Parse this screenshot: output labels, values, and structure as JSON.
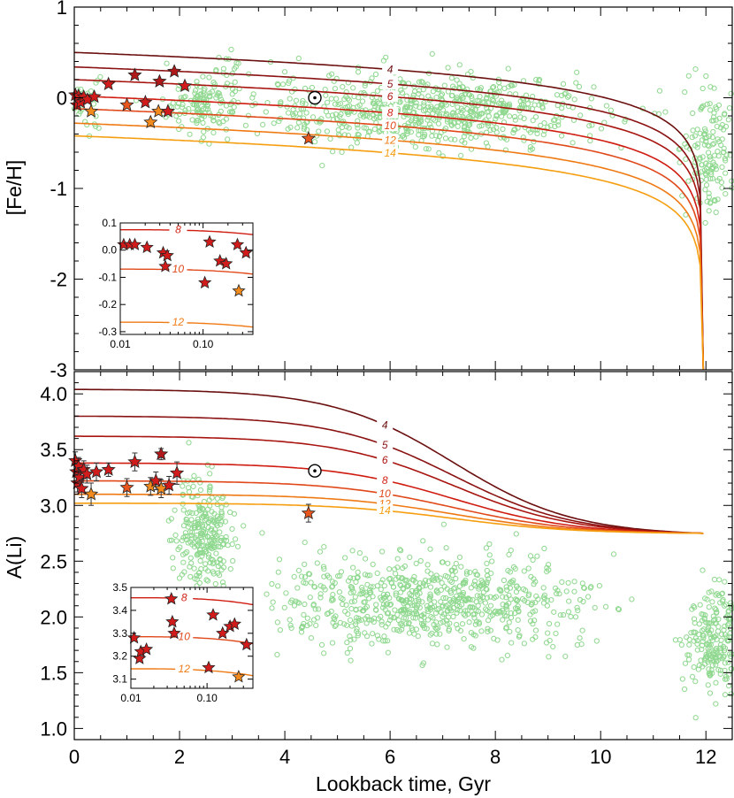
{
  "chart_data": [
    {
      "type": "line",
      "panel": "top",
      "ylabel": "[Fe/H]",
      "xlabel": "",
      "xlim": [
        0,
        12.5
      ],
      "ylim": [
        -3.0,
        1.0
      ],
      "x_ticks": [
        0,
        2,
        4,
        6,
        8,
        10,
        12
      ],
      "y_ticks": [
        1,
        0,
        -1,
        -2,
        -3
      ],
      "y_tick_labels": [
        "1",
        "0",
        "-1",
        "-2",
        "-3"
      ],
      "model_curves": [
        {
          "label": "4",
          "color": "#6b0f0f",
          "y0": 0.5
        },
        {
          "label": "5",
          "color": "#8a1212",
          "y0": 0.34
        },
        {
          "label": "6",
          "color": "#a8140f",
          "y0": 0.2
        },
        {
          "label": "8",
          "color": "#d01c10",
          "y0": 0.02
        },
        {
          "label": "10",
          "color": "#e0481a",
          "y0": -0.12
        },
        {
          "label": "12",
          "color": "#ef7a14",
          "y0": -0.28
        },
        {
          "label": "14",
          "color": "#f59e10",
          "y0": -0.42
        }
      ],
      "curve_end_x": 11.95,
      "curve_label_x": 6.0,
      "sun": {
        "x": 4.57,
        "y": 0.0
      },
      "stars": [
        {
          "x": 0.02,
          "y": 0.03,
          "color": "#d21c1c"
        },
        {
          "x": 0.05,
          "y": -0.08,
          "color": "#d21c1c"
        },
        {
          "x": 0.08,
          "y": 0.02,
          "color": "#d21c1c"
        },
        {
          "x": 0.12,
          "y": -0.05,
          "color": "#d21c1c"
        },
        {
          "x": 0.18,
          "y": 0.01,
          "color": "#d21c1c"
        },
        {
          "x": 0.25,
          "y": -0.02,
          "color": "#d21c1c"
        },
        {
          "x": 0.32,
          "y": -0.15,
          "color": "#f28a1e"
        },
        {
          "x": 0.38,
          "y": 0.01,
          "color": "#d21c1c"
        },
        {
          "x": 0.65,
          "y": 0.15,
          "color": "#d21c1c"
        },
        {
          "x": 1.0,
          "y": -0.08,
          "color": "#e8561d"
        },
        {
          "x": 1.15,
          "y": 0.25,
          "color": "#b0181a"
        },
        {
          "x": 1.35,
          "y": -0.05,
          "color": "#d21c1c"
        },
        {
          "x": 1.45,
          "y": -0.27,
          "color": "#f28a1e"
        },
        {
          "x": 1.6,
          "y": -0.15,
          "color": "#f28a1e"
        },
        {
          "x": 1.62,
          "y": 0.18,
          "color": "#b0181a"
        },
        {
          "x": 1.78,
          "y": -0.15,
          "color": "#d21c1c"
        },
        {
          "x": 1.9,
          "y": 0.29,
          "color": "#b0181a"
        },
        {
          "x": 2.1,
          "y": 0.13,
          "color": "#d21c1c"
        },
        {
          "x": 4.45,
          "y": -0.45,
          "color": "#e8561d"
        }
      ],
      "inset": {
        "xscale": "log",
        "xlim": [
          0.01,
          0.4
        ],
        "ylim": [
          -0.31,
          0.1
        ],
        "x_ticks": [
          0.01,
          0.1
        ],
        "x_tick_labels": [
          "0.01",
          "0.10"
        ],
        "y_ticks": [
          0.1,
          0.0,
          -0.1,
          -0.2,
          -0.3
        ],
        "y_tick_labels": [
          "0.1",
          "0.0",
          "-0.1",
          "-0.2",
          "-0.3"
        ],
        "lines": [
          {
            "label": "8",
            "color": "#d01c10",
            "y": 0.075,
            "slope": -0.006
          },
          {
            "label": "10",
            "color": "#e0481a",
            "y": -0.07,
            "slope": -0.006
          },
          {
            "label": "12",
            "color": "#ef7a14",
            "y": -0.265,
            "slope": -0.006
          }
        ],
        "stars": [
          {
            "x": 0.011,
            "y": 0.02,
            "color": "#d21c1c"
          },
          {
            "x": 0.013,
            "y": 0.02,
            "color": "#d21c1c"
          },
          {
            "x": 0.015,
            "y": 0.02,
            "color": "#d21c1c"
          },
          {
            "x": 0.021,
            "y": 0.01,
            "color": "#d21c1c"
          },
          {
            "x": 0.033,
            "y": -0.01,
            "color": "#d21c1c"
          },
          {
            "x": 0.035,
            "y": -0.06,
            "color": "#d21c1c"
          },
          {
            "x": 0.037,
            "y": -0.02,
            "color": "#d21c1c"
          },
          {
            "x": 0.105,
            "y": -0.12,
            "color": "#d21c1c"
          },
          {
            "x": 0.12,
            "y": 0.03,
            "color": "#d21c1c"
          },
          {
            "x": 0.16,
            "y": -0.04,
            "color": "#d21c1c"
          },
          {
            "x": 0.19,
            "y": -0.05,
            "color": "#d21c1c"
          },
          {
            "x": 0.26,
            "y": 0.02,
            "color": "#d21c1c"
          },
          {
            "x": 0.27,
            "y": -0.15,
            "color": "#f28a1e"
          },
          {
            "x": 0.33,
            "y": -0.01,
            "color": "#d21c1c"
          }
        ]
      }
    },
    {
      "type": "line",
      "panel": "bottom",
      "ylabel": "A(Li)",
      "xlabel": "Lookback time, Gyr",
      "xlim": [
        0,
        12.5
      ],
      "ylim": [
        0.9,
        4.2
      ],
      "x_ticks": [
        0,
        2,
        4,
        6,
        8,
        10,
        12
      ],
      "x_tick_labels": [
        "0",
        "2",
        "4",
        "6",
        "8",
        "10",
        "12"
      ],
      "y_ticks": [
        1.0,
        1.5,
        2.0,
        2.5,
        3.0,
        3.5,
        4.0
      ],
      "y_tick_labels": [
        "1.0",
        "1.5",
        "2.0",
        "2.5",
        "3.0",
        "3.5",
        "4.0"
      ],
      "model_curves": [
        {
          "label": "4",
          "color": "#6b0f0f",
          "y0": 4.04
        },
        {
          "label": "5",
          "color": "#8a1212",
          "y0": 3.8
        },
        {
          "label": "6",
          "color": "#a8140f",
          "y0": 3.62
        },
        {
          "label": "8",
          "color": "#d01c10",
          "y0": 3.38
        },
        {
          "label": "10",
          "color": "#e0481a",
          "y0": 3.22
        },
        {
          "label": "12",
          "color": "#ef7a14",
          "y0": 3.1
        },
        {
          "label": "14",
          "color": "#f59e10",
          "y0": 3.02
        }
      ],
      "plateau": 2.75,
      "curve_end_x": 11.95,
      "sun": {
        "x": 4.57,
        "y": 3.31
      },
      "stars": [
        {
          "x": 0.02,
          "y": 3.4,
          "err": 0.08,
          "color": "#d21c1c"
        },
        {
          "x": 0.04,
          "y": 3.3,
          "err": 0.08,
          "color": "#d21c1c"
        },
        {
          "x": 0.06,
          "y": 3.2,
          "err": 0.08,
          "color": "#d21c1c"
        },
        {
          "x": 0.08,
          "y": 3.35,
          "err": 0.08,
          "color": "#d21c1c"
        },
        {
          "x": 0.1,
          "y": 3.25,
          "err": 0.08,
          "color": "#d21c1c"
        },
        {
          "x": 0.14,
          "y": 3.15,
          "err": 0.08,
          "color": "#d21c1c"
        },
        {
          "x": 0.18,
          "y": 3.32,
          "err": 0.08,
          "color": "#d21c1c"
        },
        {
          "x": 0.24,
          "y": 3.28,
          "err": 0.08,
          "color": "#d21c1c"
        },
        {
          "x": 0.32,
          "y": 3.1,
          "err": 0.1,
          "color": "#f28a1e"
        },
        {
          "x": 0.42,
          "y": 3.3,
          "err": 0.08,
          "color": "#d21c1c"
        },
        {
          "x": 0.65,
          "y": 3.32,
          "err": 0.06,
          "color": "#d21c1c"
        },
        {
          "x": 1.0,
          "y": 3.16,
          "err": 0.08,
          "color": "#e8561d"
        },
        {
          "x": 1.15,
          "y": 3.39,
          "err": 0.08,
          "color": "#d21c1c"
        },
        {
          "x": 1.45,
          "y": 3.17,
          "err": 0.08,
          "color": "#f28a1e"
        },
        {
          "x": 1.55,
          "y": 3.22,
          "err": 0.08,
          "color": "#d21c1c"
        },
        {
          "x": 1.65,
          "y": 3.15,
          "err": 0.08,
          "color": "#f28a1e"
        },
        {
          "x": 1.65,
          "y": 3.46,
          "err": 0.05,
          "color": "#b0181a"
        },
        {
          "x": 1.8,
          "y": 3.18,
          "err": 0.08,
          "color": "#d21c1c"
        },
        {
          "x": 1.95,
          "y": 3.29,
          "err": 0.1,
          "color": "#d21c1c"
        },
        {
          "x": 4.45,
          "y": 2.93,
          "err": 0.08,
          "color": "#e8561d"
        }
      ],
      "inset": {
        "xscale": "log",
        "xlim": [
          0.01,
          0.4
        ],
        "ylim": [
          3.06,
          3.5
        ],
        "x_ticks": [
          0.01,
          0.1
        ],
        "x_tick_labels": [
          "0.01",
          "0.10"
        ],
        "y_ticks": [
          3.1,
          3.2,
          3.3,
          3.4,
          3.5
        ],
        "y_tick_labels": [
          "3.1",
          "3.2",
          "3.3",
          "3.4",
          "3.5"
        ],
        "lines": [
          {
            "label": "8",
            "color": "#d01c10",
            "y": 3.455,
            "slope": -0.01
          },
          {
            "label": "10",
            "color": "#e0481a",
            "y": 3.285,
            "slope": -0.01
          },
          {
            "label": "12",
            "color": "#ef7a14",
            "y": 3.145,
            "slope": -0.01
          }
        ],
        "stars": [
          {
            "x": 0.011,
            "y": 3.28,
            "color": "#d21c1c"
          },
          {
            "x": 0.013,
            "y": 3.19,
            "color": "#d21c1c"
          },
          {
            "x": 0.0135,
            "y": 3.22,
            "color": "#d21c1c"
          },
          {
            "x": 0.016,
            "y": 3.23,
            "color": "#d21c1c"
          },
          {
            "x": 0.034,
            "y": 3.45,
            "color": "#d21c1c"
          },
          {
            "x": 0.035,
            "y": 3.35,
            "color": "#d21c1c"
          },
          {
            "x": 0.037,
            "y": 3.3,
            "color": "#d21c1c"
          },
          {
            "x": 0.105,
            "y": 3.15,
            "color": "#d21c1c"
          },
          {
            "x": 0.12,
            "y": 3.38,
            "color": "#d21c1c"
          },
          {
            "x": 0.16,
            "y": 3.3,
            "color": "#d21c1c"
          },
          {
            "x": 0.2,
            "y": 3.33,
            "color": "#d21c1c"
          },
          {
            "x": 0.23,
            "y": 3.34,
            "color": "#d21c1c"
          },
          {
            "x": 0.26,
            "y": 3.11,
            "color": "#f28a1e"
          },
          {
            "x": 0.33,
            "y": 3.25,
            "color": "#d21c1c"
          }
        ]
      }
    }
  ],
  "field_star_color": "#8fd88f",
  "field_star_clusters": {
    "top": [
      {
        "cx": 0.1,
        "cy": -0.05,
        "sx": 0.2,
        "sy": 0.18,
        "n": 40
      },
      {
        "cx": 2.4,
        "cy": -0.08,
        "sx": 0.35,
        "sy": 0.14,
        "n": 130
      },
      {
        "cx": 3.0,
        "cy": 0.3,
        "sx": 0.15,
        "sy": 0.1,
        "n": 20
      },
      {
        "cx": 6.8,
        "cy": -0.15,
        "sx": 1.6,
        "sy": 0.2,
        "n": 700
      },
      {
        "cx": 12.1,
        "cy": -0.6,
        "sx": 0.25,
        "sy": 0.35,
        "n": 150
      }
    ],
    "bottom": [
      {
        "cx": 2.45,
        "cy": 2.75,
        "sx": 0.28,
        "sy": 0.25,
        "n": 260
      },
      {
        "cx": 6.8,
        "cy": 2.15,
        "sx": 1.5,
        "sy": 0.2,
        "n": 750
      },
      {
        "cx": 12.2,
        "cy": 1.8,
        "sx": 0.3,
        "sy": 0.25,
        "n": 230
      }
    ]
  }
}
